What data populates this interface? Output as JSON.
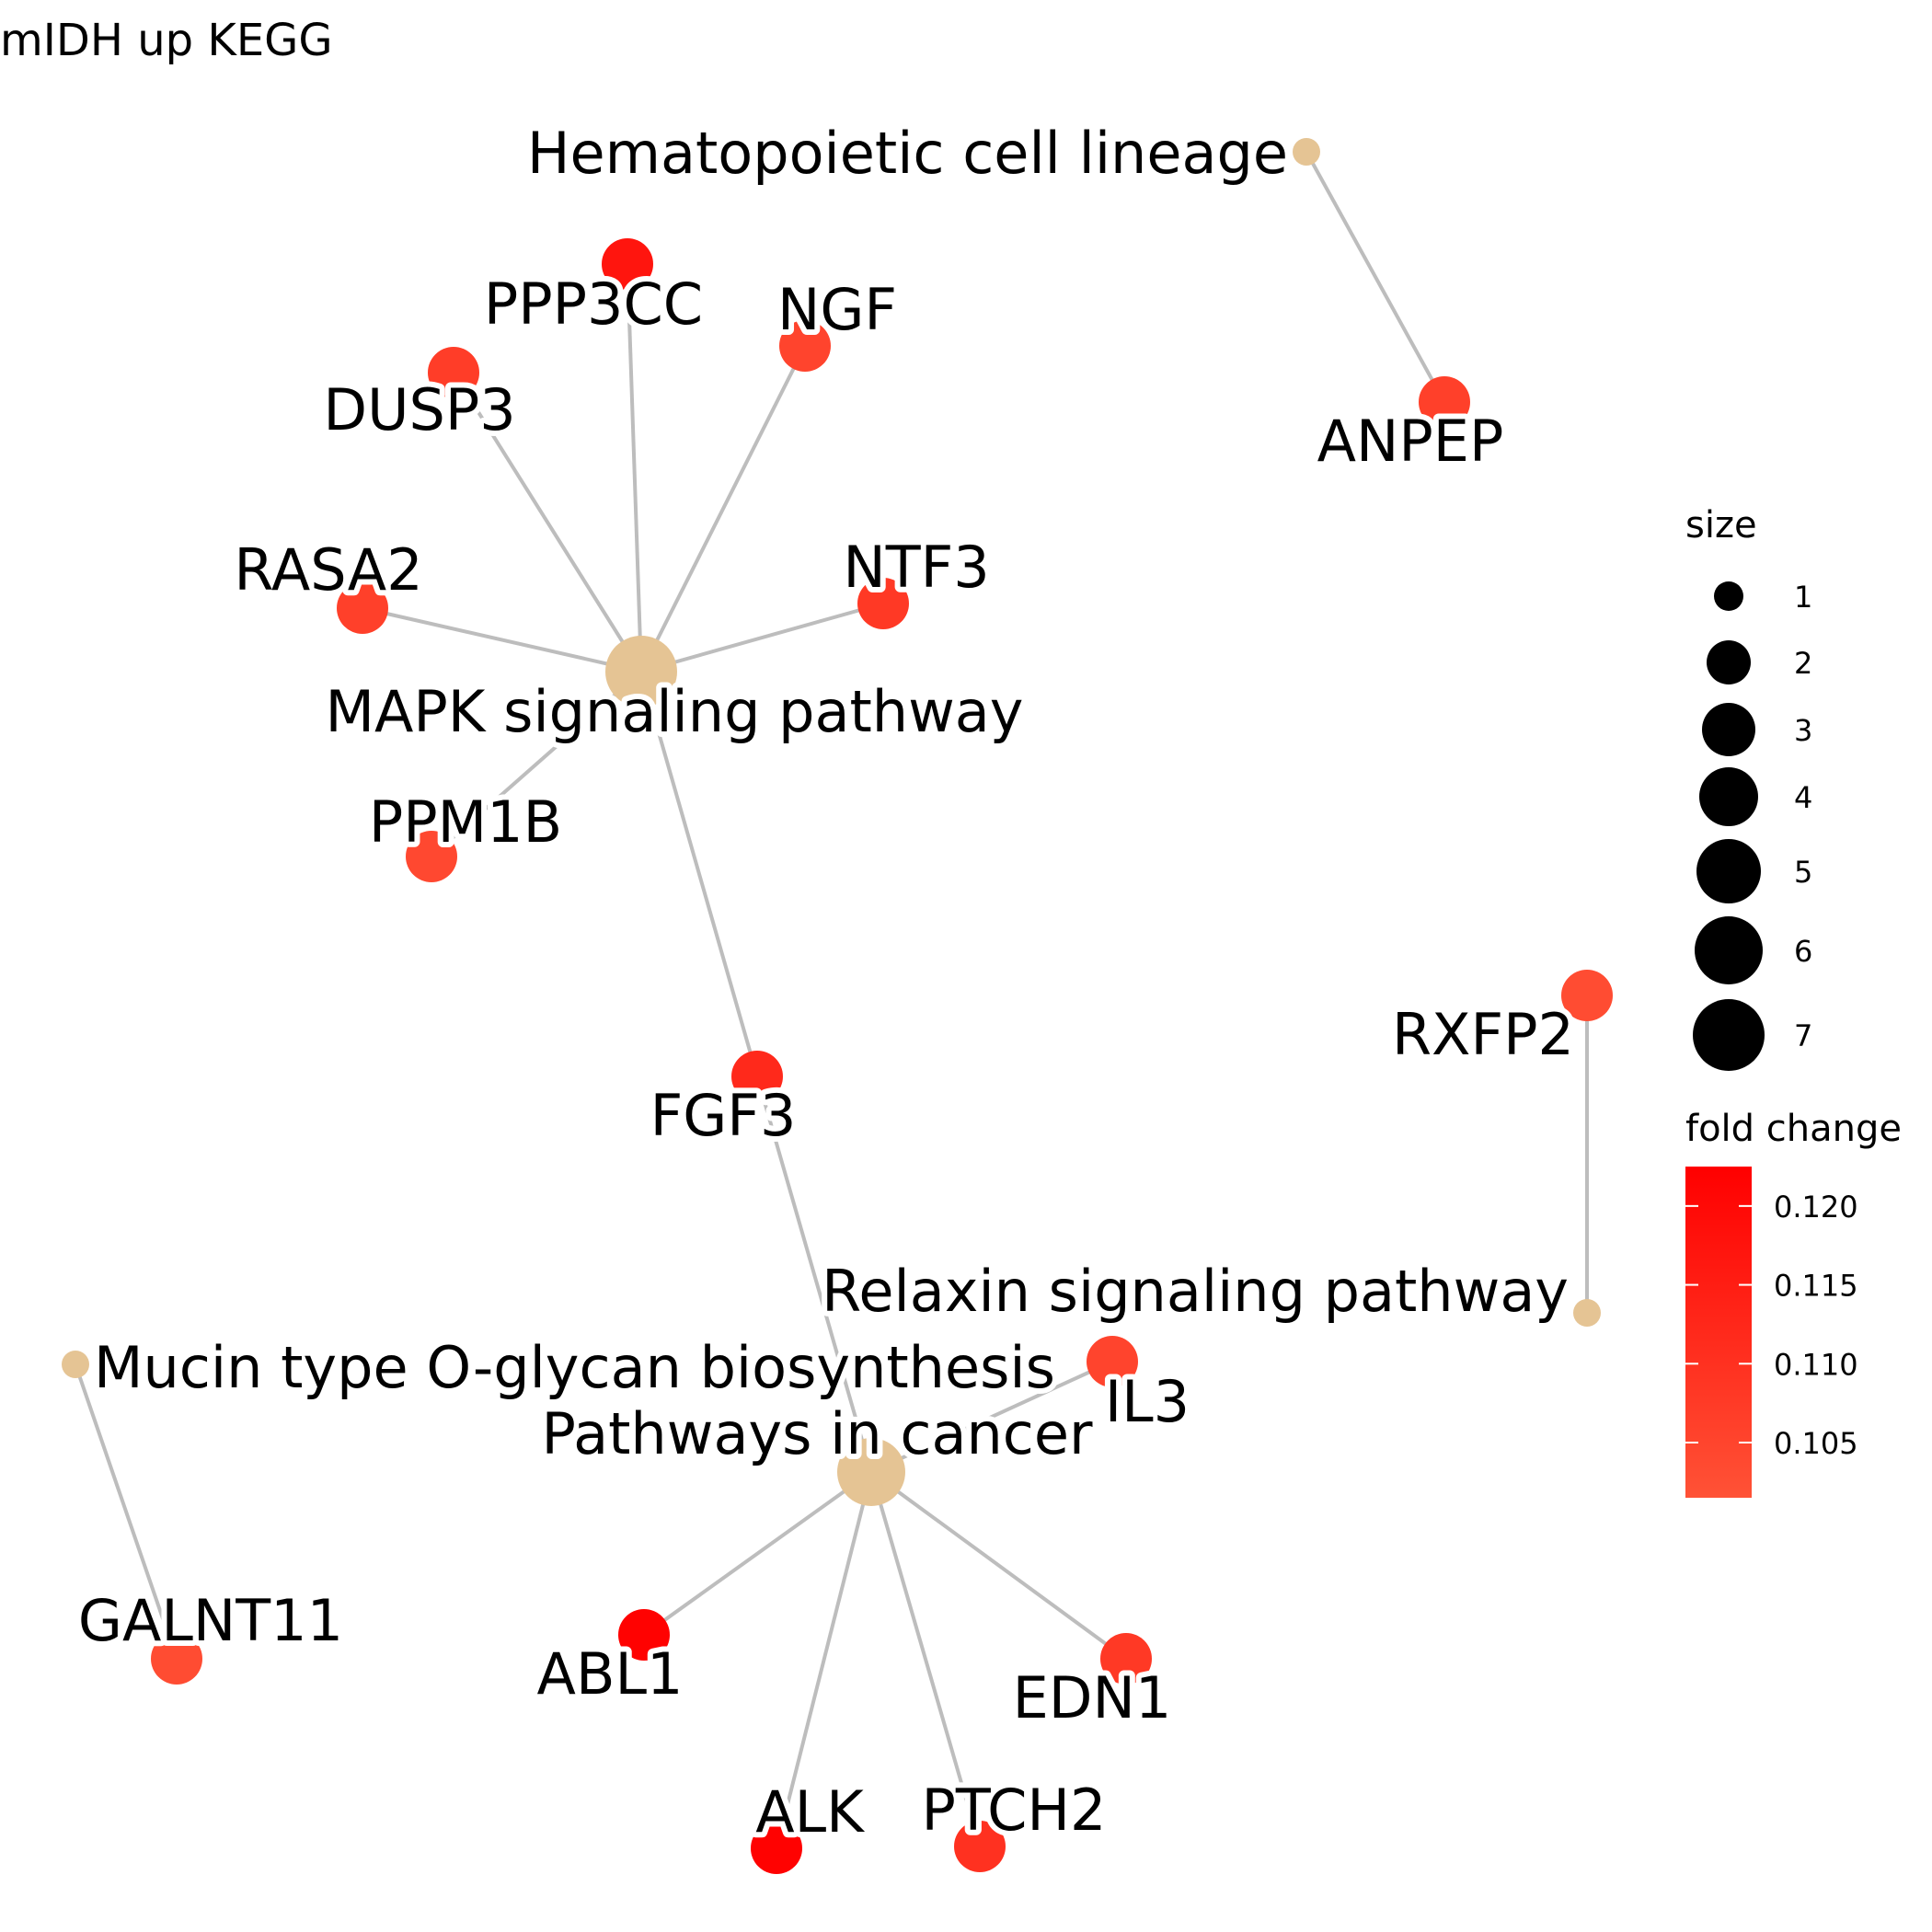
{
  "title": "mIDH up KEGG",
  "colors": {
    "edge": "#bdbdbd",
    "category_node": "#e5c494",
    "legend_point": "#000000",
    "fold_change_low": "#ff5236",
    "fold_change_high": "#ff0000",
    "background": "#ffffff"
  },
  "network": {
    "categories": [
      {
        "id": "hematopoietic",
        "label": "Hematopoietic cell lineage",
        "size": 1
      },
      {
        "id": "mapk",
        "label": "MAPK signaling pathway",
        "size": 7
      },
      {
        "id": "relaxin",
        "label": "Relaxin signaling pathway",
        "size": 1
      },
      {
        "id": "mucin",
        "label": "Mucin type O-glycan biosynthesis",
        "size": 1
      },
      {
        "id": "cancer",
        "label": "Pathways in cancer",
        "size": 6
      }
    ],
    "genes": [
      {
        "id": "ANPEP",
        "label": "ANPEP",
        "fold_change": 0.106
      },
      {
        "id": "PPP3CC",
        "label": "PPP3CC",
        "fold_change": 0.117
      },
      {
        "id": "NGF",
        "label": "NGF",
        "fold_change": 0.105
      },
      {
        "id": "DUSP3",
        "label": "DUSP3",
        "fold_change": 0.107
      },
      {
        "id": "RASA2",
        "label": "RASA2",
        "fold_change": 0.106
      },
      {
        "id": "NTF3",
        "label": "NTF3",
        "fold_change": 0.108
      },
      {
        "id": "PPM1B",
        "label": "PPM1B",
        "fold_change": 0.104
      },
      {
        "id": "FGF3",
        "label": "FGF3",
        "fold_change": 0.112
      },
      {
        "id": "RXFP2",
        "label": "RXFP2",
        "fold_change": 0.103
      },
      {
        "id": "IL3",
        "label": "IL3",
        "fold_change": 0.105
      },
      {
        "id": "GALNT11",
        "label": "GALNT11",
        "fold_change": 0.103
      },
      {
        "id": "ABL1",
        "label": "ABL1",
        "fold_change": 0.122
      },
      {
        "id": "EDN1",
        "label": "EDN1",
        "fold_change": 0.108
      },
      {
        "id": "ALK",
        "label": "ALK",
        "fold_change": 0.122
      },
      {
        "id": "PTCH2",
        "label": "PTCH2",
        "fold_change": 0.11
      }
    ],
    "edges": [
      [
        "hematopoietic",
        "ANPEP"
      ],
      [
        "mapk",
        "PPP3CC"
      ],
      [
        "mapk",
        "NGF"
      ],
      [
        "mapk",
        "DUSP3"
      ],
      [
        "mapk",
        "RASA2"
      ],
      [
        "mapk",
        "NTF3"
      ],
      [
        "mapk",
        "PPM1B"
      ],
      [
        "mapk",
        "FGF3"
      ],
      [
        "cancer",
        "FGF3"
      ],
      [
        "cancer",
        "IL3"
      ],
      [
        "cancer",
        "ABL1"
      ],
      [
        "cancer",
        "EDN1"
      ],
      [
        "cancer",
        "ALK"
      ],
      [
        "cancer",
        "PTCH2"
      ],
      [
        "relaxin",
        "RXFP2"
      ],
      [
        "mucin",
        "GALNT11"
      ]
    ]
  },
  "legend": {
    "size": {
      "title": "size",
      "items": [
        "1",
        "2",
        "3",
        "4",
        "5",
        "6",
        "7"
      ]
    },
    "fold_change": {
      "title": "fold change",
      "range": [
        0.1015,
        0.1225
      ],
      "ticks": [
        {
          "value": 0.12,
          "label": "0.120"
        },
        {
          "value": 0.115,
          "label": "0.115"
        },
        {
          "value": 0.11,
          "label": "0.110"
        },
        {
          "value": 0.105,
          "label": "0.105"
        }
      ]
    }
  }
}
